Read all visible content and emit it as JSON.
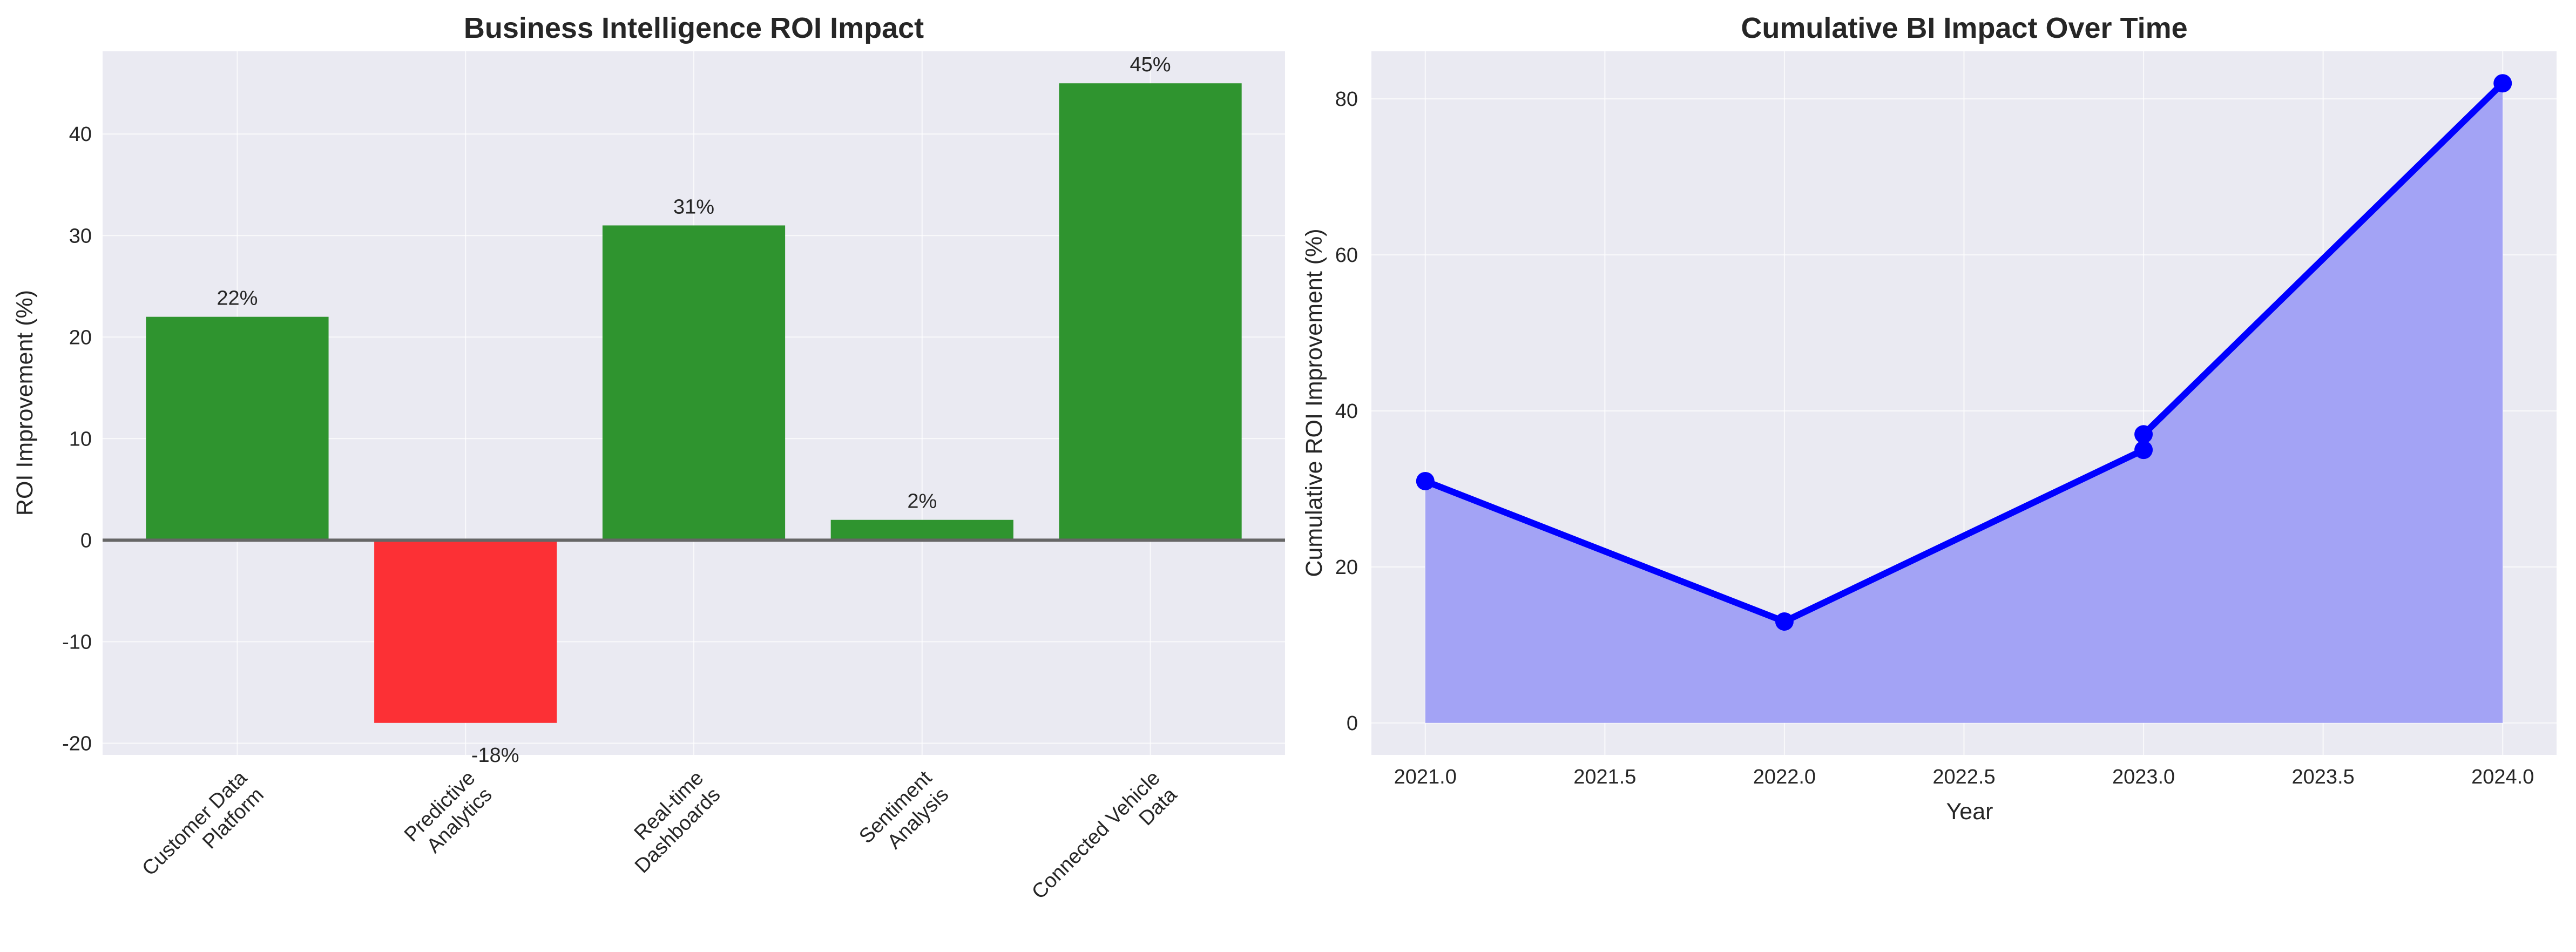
{
  "chart_data": [
    {
      "type": "bar",
      "title": "Business Intelligence ROI Impact",
      "xlabel": "",
      "ylabel": "ROI Improvement (%)",
      "categories": [
        "Customer Data\nPlatform",
        "Predictive\nAnalytics",
        "Real-time\nDashboards",
        "Sentiment\nAnalysis",
        "Connected Vehicle\nData"
      ],
      "values": [
        22,
        -18,
        31,
        2,
        45
      ],
      "data_labels": [
        "22%",
        "-18%",
        "31%",
        "2%",
        "45%"
      ],
      "ylim": [
        -21.15,
        48.15
      ],
      "yticks": [
        -20,
        -10,
        0,
        10,
        20,
        30,
        40
      ],
      "colors": {
        "positive": "#2f942f",
        "negative": "#fc3035",
        "zero_line": "#666666"
      },
      "grid": true
    },
    {
      "type": "area",
      "title": "Cumulative BI Impact Over Time",
      "xlabel": "Year",
      "ylabel": "Cumulative ROI Improvement (%)",
      "x": [
        2021,
        2022,
        2023,
        2023,
        2024
      ],
      "values": [
        31,
        13,
        35,
        37,
        82
      ],
      "xlim": [
        2020.85,
        2024.15
      ],
      "ylim": [
        -4.1,
        86.1
      ],
      "xticks": [
        "2021.0",
        "2021.5",
        "2022.0",
        "2022.5",
        "2023.0",
        "2023.5",
        "2024.0"
      ],
      "yticks": [
        0,
        20,
        40,
        60,
        80
      ],
      "colors": {
        "line": "#0000ff",
        "fill": "#a3a3f5"
      },
      "grid": true
    }
  ]
}
